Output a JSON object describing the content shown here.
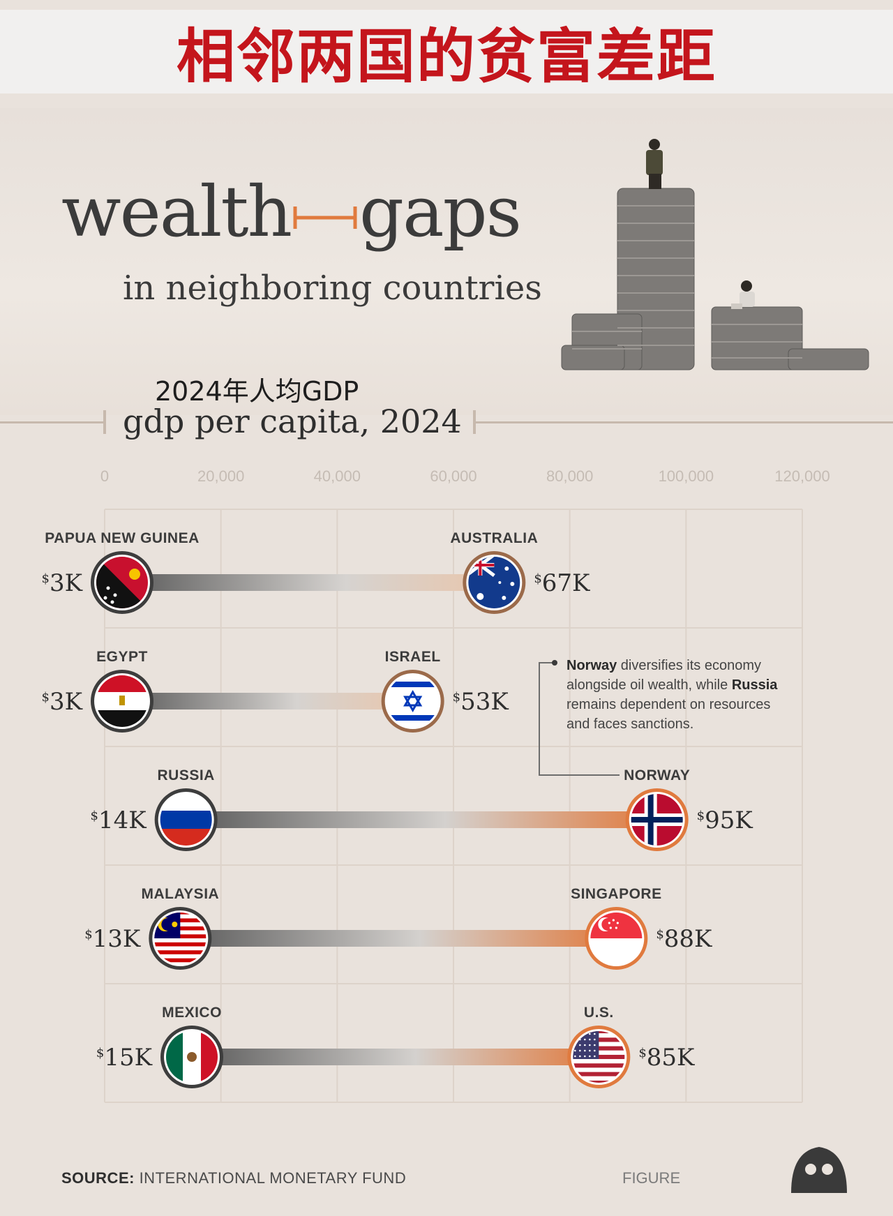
{
  "banner": {
    "title": "相邻两国的贫富差距"
  },
  "header": {
    "title_word1": "wealth",
    "title_word2": "gaps",
    "subtitle": "in neighboring countries",
    "chart_subtitle_cn": "2024年人均GDP",
    "chart_subtitle_en": "gdp per capita, 2024"
  },
  "colors": {
    "accent": "#e07a3e",
    "banner_red": "#c4151c",
    "background": "#e9e2dc"
  },
  "chart_data": {
    "type": "dumbbell",
    "title": "gdp per capita, 2024",
    "xlim": [
      0,
      120000
    ],
    "xticks": [
      "0",
      "20,000",
      "40,000",
      "60,000",
      "80,000",
      "100,000",
      "120,000"
    ],
    "tick_values": [
      0,
      20000,
      40000,
      60000,
      80000,
      100000,
      120000
    ],
    "grid": true,
    "pairs": [
      {
        "low_country": "PAPUA NEW GUINEA",
        "low_value": 3000,
        "low_label": "3K",
        "low_flag": "papua-new-guinea-flag-icon",
        "high_country": "AUSTRALIA",
        "high_value": 67000,
        "high_label": "67K",
        "high_flag": "australia-flag-icon"
      },
      {
        "low_country": "EGYPT",
        "low_value": 3000,
        "low_label": "3K",
        "low_flag": "egypt-flag-icon",
        "high_country": "ISRAEL",
        "high_value": 53000,
        "high_label": "53K",
        "high_flag": "israel-flag-icon"
      },
      {
        "low_country": "RUSSIA",
        "low_value": 14000,
        "low_label": "14K",
        "low_flag": "russia-flag-icon",
        "high_country": "NORWAY",
        "high_value": 95000,
        "high_label": "95K",
        "high_flag": "norway-flag-icon"
      },
      {
        "low_country": "MALAYSIA",
        "low_value": 13000,
        "low_label": "13K",
        "low_flag": "malaysia-flag-icon",
        "high_country": "SINGAPORE",
        "high_value": 88000,
        "high_label": "88K",
        "high_flag": "singapore-flag-icon"
      },
      {
        "low_country": "MEXICO",
        "low_value": 15000,
        "low_label": "15K",
        "low_flag": "mexico-flag-icon",
        "high_country": "U.S.",
        "high_value": 85000,
        "high_label": "85K",
        "high_flag": "us-flag-icon"
      }
    ],
    "currency_symbol": "$"
  },
  "annotation": {
    "norway": "Norway",
    "text1": " diversifies its economy alongside oil wealth, while ",
    "russia": "Russia",
    "text2": " remains dependent on resources and faces sanctions."
  },
  "footer": {
    "source_label": "SOURCE:",
    "source_text": " INTERNATIONAL MONETARY FUND",
    "figure_credit": "FIGURE"
  }
}
